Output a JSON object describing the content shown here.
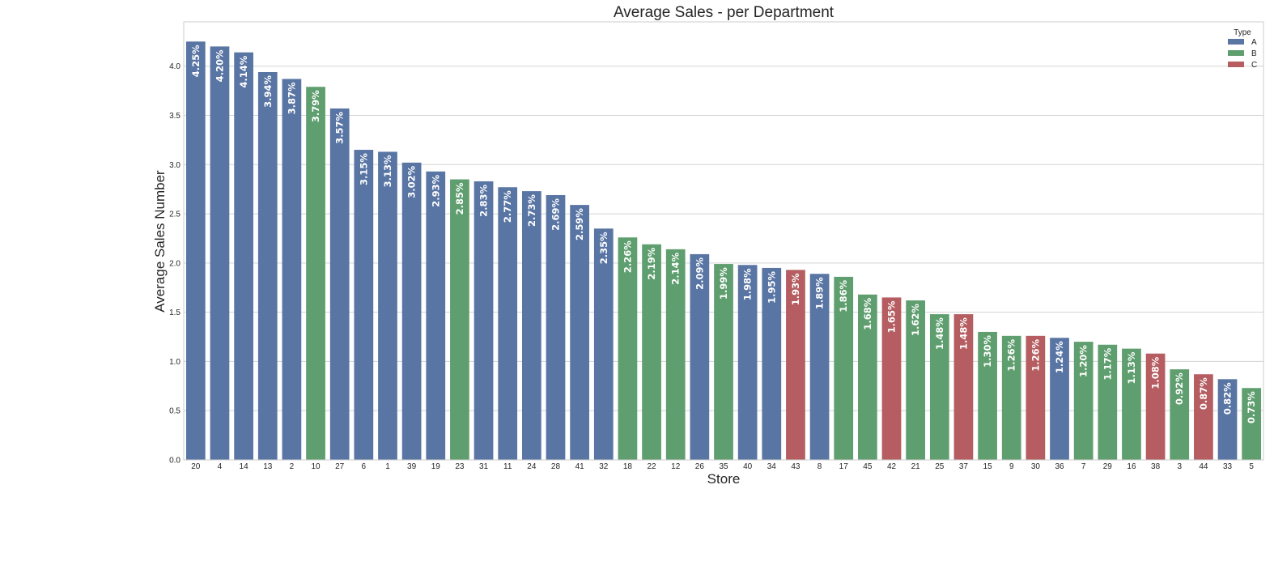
{
  "chart_data": {
    "type": "bar",
    "title": "Average Sales - per Department",
    "xlabel": "Store",
    "ylabel": "Average Sales Number",
    "ylim": [
      0,
      4.45
    ],
    "yticks": [
      "0.0",
      "0.5",
      "1.0",
      "1.5",
      "2.0",
      "2.5",
      "3.0",
      "3.5",
      "4.0"
    ],
    "grid": true,
    "legend": {
      "title": "Type",
      "placement": "top-right",
      "entries": [
        {
          "label": "A",
          "color": "#5975a4"
        },
        {
          "label": "B",
          "color": "#5f9e6e"
        },
        {
          "label": "C",
          "color": "#b55d60"
        }
      ]
    },
    "categories": [
      "20",
      "4",
      "14",
      "13",
      "2",
      "10",
      "27",
      "6",
      "1",
      "39",
      "19",
      "23",
      "31",
      "11",
      "24",
      "28",
      "41",
      "32",
      "18",
      "22",
      "12",
      "26",
      "35",
      "40",
      "34",
      "43",
      "8",
      "17",
      "45",
      "42",
      "21",
      "25",
      "37",
      "15",
      "9",
      "30",
      "36",
      "7",
      "29",
      "16",
      "38",
      "3",
      "44",
      "33",
      "5"
    ],
    "values": [
      4.25,
      4.2,
      4.14,
      3.94,
      3.87,
      3.79,
      3.57,
      3.15,
      3.13,
      3.02,
      2.93,
      2.85,
      2.83,
      2.77,
      2.73,
      2.69,
      2.59,
      2.35,
      2.26,
      2.19,
      2.14,
      2.09,
      1.99,
      1.98,
      1.95,
      1.93,
      1.89,
      1.86,
      1.68,
      1.65,
      1.62,
      1.48,
      1.48,
      1.3,
      1.26,
      1.26,
      1.24,
      1.2,
      1.17,
      1.13,
      1.08,
      0.92,
      0.87,
      0.82,
      0.73
    ],
    "types": [
      "A",
      "A",
      "A",
      "A",
      "A",
      "B",
      "A",
      "A",
      "A",
      "A",
      "A",
      "B",
      "A",
      "A",
      "A",
      "A",
      "A",
      "A",
      "B",
      "B",
      "B",
      "A",
      "B",
      "A",
      "A",
      "C",
      "A",
      "B",
      "B",
      "C",
      "B",
      "B",
      "C",
      "B",
      "B",
      "C",
      "A",
      "B",
      "B",
      "B",
      "C",
      "B",
      "C",
      "A",
      "B"
    ],
    "labels": [
      "4.25%",
      "4.20%",
      "4.14%",
      "3.94%",
      "3.87%",
      "3.79%",
      "3.57%",
      "3.15%",
      "3.13%",
      "3.02%",
      "2.93%",
      "2.85%",
      "2.83%",
      "2.77%",
      "2.73%",
      "2.69%",
      "2.59%",
      "2.35%",
      "2.26%",
      "2.19%",
      "2.14%",
      "2.09%",
      "1.99%",
      "1.98%",
      "1.95%",
      "1.93%",
      "1.89%",
      "1.86%",
      "1.68%",
      "1.65%",
      "1.62%",
      "1.48%",
      "1.48%",
      "1.30%",
      "1.26%",
      "1.26%",
      "1.24%",
      "1.20%",
      "1.17%",
      "1.13%",
      "1.08%",
      "0.92%",
      "0.87%",
      "0.82%",
      "0.73%"
    ]
  }
}
